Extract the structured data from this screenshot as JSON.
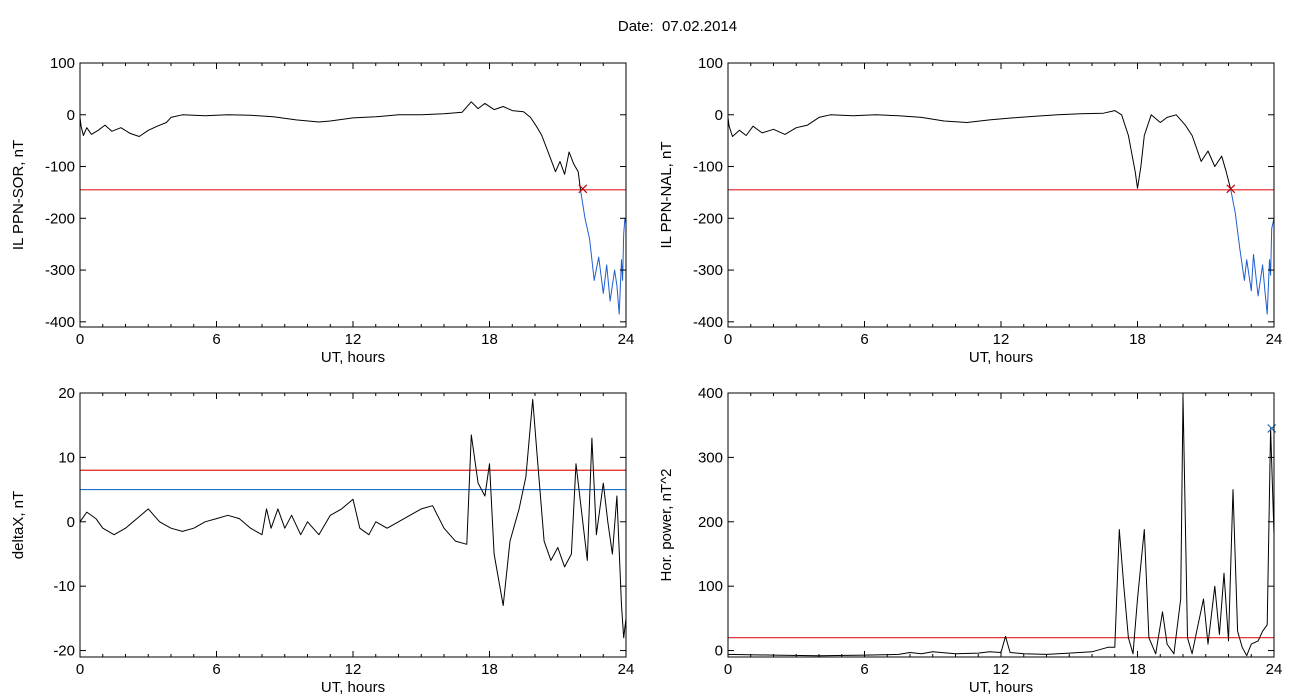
{
  "figure": {
    "title": "Date:  07.02.2014"
  },
  "chart_data": [
    {
      "type": "line",
      "panel": "top-left",
      "xlabel": "UT, hours",
      "ylabel": "IL PPN-SOR, nT",
      "xlim": [
        0,
        24
      ],
      "ylim": [
        -410,
        100
      ],
      "xticks": [
        0,
        6,
        12,
        18,
        24
      ],
      "yticks": [
        100,
        0,
        -100,
        -200,
        -300,
        -400
      ],
      "threshold_lines": [
        {
          "y": -145,
          "color": "#e02020"
        }
      ],
      "markers": [
        {
          "x": 22.1,
          "y": -143,
          "symbol": "x",
          "color": "#c00000"
        }
      ],
      "series": [
        {
          "color": "#000000",
          "points": [
            [
              0,
              -5
            ],
            [
              0.05,
              -22
            ],
            [
              0.15,
              -40
            ],
            [
              0.3,
              -25
            ],
            [
              0.5,
              -38
            ],
            [
              0.8,
              -30
            ],
            [
              1.1,
              -20
            ],
            [
              1.4,
              -32
            ],
            [
              1.8,
              -25
            ],
            [
              2.2,
              -36
            ],
            [
              2.6,
              -42
            ],
            [
              3.0,
              -30
            ],
            [
              3.4,
              -22
            ],
            [
              3.8,
              -15
            ],
            [
              4.0,
              -5
            ],
            [
              4.5,
              0
            ],
            [
              5.5,
              -2
            ],
            [
              6.5,
              0
            ],
            [
              7.5,
              -1
            ],
            [
              8.5,
              -4
            ],
            [
              9.5,
              -10
            ],
            [
              10.5,
              -14
            ],
            [
              11.0,
              -12
            ],
            [
              12.0,
              -6
            ],
            [
              13.0,
              -4
            ],
            [
              14.0,
              0
            ],
            [
              15.0,
              0
            ],
            [
              16.0,
              2
            ],
            [
              16.8,
              5
            ],
            [
              17.2,
              25
            ],
            [
              17.5,
              12
            ],
            [
              17.8,
              22
            ],
            [
              18.2,
              10
            ],
            [
              18.6,
              16
            ],
            [
              19.0,
              8
            ],
            [
              19.5,
              6
            ],
            [
              19.8,
              -5
            ],
            [
              20.1,
              -25
            ],
            [
              20.3,
              -40
            ],
            [
              20.6,
              -75
            ],
            [
              20.9,
              -110
            ],
            [
              21.1,
              -90
            ],
            [
              21.3,
              -115
            ],
            [
              21.5,
              -72
            ],
            [
              21.7,
              -95
            ],
            [
              21.9,
              -110
            ],
            [
              22.0,
              -145
            ]
          ]
        },
        {
          "color": "#1f5fcf",
          "points": [
            [
              22.0,
              -145
            ],
            [
              22.2,
              -200
            ],
            [
              22.4,
              -240
            ],
            [
              22.6,
              -320
            ],
            [
              22.8,
              -275
            ],
            [
              22.9,
              -310
            ],
            [
              23.0,
              -345
            ],
            [
              23.15,
              -290
            ],
            [
              23.3,
              -360
            ],
            [
              23.5,
              -300
            ],
            [
              23.6,
              -330
            ],
            [
              23.7,
              -385
            ],
            [
              23.8,
              -280
            ],
            [
              23.85,
              -320
            ],
            [
              23.9,
              -230
            ],
            [
              23.95,
              -200
            ],
            [
              24,
              -210
            ]
          ]
        }
      ]
    },
    {
      "type": "line",
      "panel": "top-right",
      "xlabel": "UT, hours",
      "ylabel": "IL PPN-NAL, nT",
      "xlim": [
        0,
        24
      ],
      "ylim": [
        -410,
        100
      ],
      "xticks": [
        0,
        6,
        12,
        18,
        24
      ],
      "yticks": [
        100,
        0,
        -100,
        -200,
        -300,
        -400
      ],
      "threshold_lines": [
        {
          "y": -145,
          "color": "#e02020"
        }
      ],
      "markers": [
        {
          "x": 22.1,
          "y": -143,
          "symbol": "x",
          "color": "#c00000"
        }
      ],
      "series": [
        {
          "color": "#000000",
          "points": [
            [
              0,
              -5
            ],
            [
              0.05,
              -22
            ],
            [
              0.2,
              -42
            ],
            [
              0.5,
              -30
            ],
            [
              0.8,
              -40
            ],
            [
              1.1,
              -22
            ],
            [
              1.5,
              -35
            ],
            [
              2.0,
              -28
            ],
            [
              2.5,
              -38
            ],
            [
              3.0,
              -25
            ],
            [
              3.5,
              -20
            ],
            [
              4.0,
              -5
            ],
            [
              4.5,
              0
            ],
            [
              5.5,
              -2
            ],
            [
              6.5,
              0
            ],
            [
              7.5,
              -2
            ],
            [
              8.5,
              -5
            ],
            [
              9.5,
              -12
            ],
            [
              10.5,
              -15
            ],
            [
              11.5,
              -10
            ],
            [
              12.5,
              -6
            ],
            [
              13.5,
              -3
            ],
            [
              14.5,
              0
            ],
            [
              15.5,
              2
            ],
            [
              16.5,
              3
            ],
            [
              17.0,
              8
            ],
            [
              17.3,
              0
            ],
            [
              17.6,
              -40
            ],
            [
              17.9,
              -110
            ],
            [
              18.0,
              -142
            ],
            [
              18.15,
              -100
            ],
            [
              18.3,
              -40
            ],
            [
              18.6,
              0
            ],
            [
              19.0,
              -15
            ],
            [
              19.3,
              -5
            ],
            [
              19.7,
              0
            ],
            [
              20.1,
              -20
            ],
            [
              20.4,
              -40
            ],
            [
              20.8,
              -90
            ],
            [
              21.1,
              -70
            ],
            [
              21.4,
              -100
            ],
            [
              21.7,
              -80
            ],
            [
              21.9,
              -110
            ],
            [
              22.1,
              -145
            ]
          ]
        },
        {
          "color": "#1f5fcf",
          "points": [
            [
              22.1,
              -145
            ],
            [
              22.3,
              -190
            ],
            [
              22.5,
              -260
            ],
            [
              22.7,
              -320
            ],
            [
              22.8,
              -280
            ],
            [
              23.0,
              -340
            ],
            [
              23.1,
              -270
            ],
            [
              23.3,
              -350
            ],
            [
              23.5,
              -290
            ],
            [
              23.6,
              -340
            ],
            [
              23.7,
              -385
            ],
            [
              23.8,
              -280
            ],
            [
              23.85,
              -310
            ],
            [
              23.9,
              -220
            ],
            [
              24,
              -200
            ]
          ]
        }
      ]
    },
    {
      "type": "line",
      "panel": "bottom-left",
      "xlabel": "UT, hours",
      "ylabel": "deltaX, nT",
      "xlim": [
        0,
        24
      ],
      "ylim": [
        -21,
        20
      ],
      "xticks": [
        0,
        6,
        12,
        18,
        24
      ],
      "yticks": [
        20,
        10,
        0,
        -10,
        -20
      ],
      "threshold_lines": [
        {
          "y": 8,
          "color": "#e02020"
        },
        {
          "y": 5,
          "color": "#1f6fd0"
        }
      ],
      "series": [
        {
          "color": "#000000",
          "points": [
            [
              0,
              0
            ],
            [
              0.3,
              1.5
            ],
            [
              0.7,
              0.5
            ],
            [
              1.0,
              -1
            ],
            [
              1.5,
              -2
            ],
            [
              2.0,
              -1
            ],
            [
              2.5,
              0.5
            ],
            [
              3.0,
              2
            ],
            [
              3.5,
              0
            ],
            [
              4.0,
              -1
            ],
            [
              4.5,
              -1.5
            ],
            [
              5.0,
              -1
            ],
            [
              5.5,
              0
            ],
            [
              6.0,
              0.5
            ],
            [
              6.5,
              1
            ],
            [
              7.0,
              0.5
            ],
            [
              7.5,
              -1
            ],
            [
              8.0,
              -2
            ],
            [
              8.2,
              2
            ],
            [
              8.4,
              -1
            ],
            [
              8.7,
              2
            ],
            [
              9.0,
              -1
            ],
            [
              9.3,
              1
            ],
            [
              9.7,
              -2
            ],
            [
              10.0,
              0
            ],
            [
              10.5,
              -2
            ],
            [
              11.0,
              1
            ],
            [
              11.5,
              2
            ],
            [
              12.0,
              3.5
            ],
            [
              12.3,
              -1
            ],
            [
              12.7,
              -2
            ],
            [
              13.0,
              0
            ],
            [
              13.5,
              -1
            ],
            [
              14.0,
              0
            ],
            [
              14.5,
              1
            ],
            [
              15.0,
              2
            ],
            [
              15.5,
              2.5
            ],
            [
              16.0,
              -1
            ],
            [
              16.5,
              -3
            ],
            [
              17.0,
              -3.5
            ],
            [
              17.2,
              13.5
            ],
            [
              17.5,
              6
            ],
            [
              17.8,
              4
            ],
            [
              18.0,
              9
            ],
            [
              18.2,
              -5
            ],
            [
              18.6,
              -13
            ],
            [
              18.9,
              -3
            ],
            [
              19.3,
              2
            ],
            [
              19.6,
              7
            ],
            [
              19.9,
              19
            ],
            [
              20.1,
              10
            ],
            [
              20.4,
              -3
            ],
            [
              20.7,
              -6
            ],
            [
              21.0,
              -4
            ],
            [
              21.3,
              -7
            ],
            [
              21.6,
              -5
            ],
            [
              21.8,
              9
            ],
            [
              22.0,
              3
            ],
            [
              22.3,
              -6
            ],
            [
              22.5,
              13
            ],
            [
              22.7,
              -2
            ],
            [
              23.0,
              6
            ],
            [
              23.2,
              0
            ],
            [
              23.4,
              -5
            ],
            [
              23.6,
              4
            ],
            [
              23.8,
              -13
            ],
            [
              23.9,
              -18
            ],
            [
              24,
              -15
            ]
          ]
        }
      ]
    },
    {
      "type": "line",
      "panel": "bottom-right",
      "xlabel": "UT, hours",
      "ylabel": "Hor. power, nT^2",
      "xlim": [
        0,
        24
      ],
      "ylim": [
        -10,
        400
      ],
      "xticks": [
        0,
        6,
        12,
        18,
        24
      ],
      "yticks": [
        400,
        300,
        200,
        100,
        0
      ],
      "threshold_lines": [
        {
          "y": 20,
          "color": "#e02020"
        }
      ],
      "markers": [
        {
          "x": 23.9,
          "y": 345,
          "symbol": "x",
          "color": "#2f6fb0"
        }
      ],
      "series": [
        {
          "color": "#000000",
          "points": [
            [
              0,
              -6
            ],
            [
              2,
              -7
            ],
            [
              4,
              -8
            ],
            [
              6,
              -7
            ],
            [
              7.5,
              -6
            ],
            [
              8.0,
              -3
            ],
            [
              8.5,
              -5
            ],
            [
              9.0,
              -2
            ],
            [
              10.0,
              -5
            ],
            [
              11.0,
              -4
            ],
            [
              11.5,
              -2
            ],
            [
              12.0,
              -3
            ],
            [
              12.2,
              22
            ],
            [
              12.4,
              -3
            ],
            [
              13,
              -5
            ],
            [
              14,
              -6
            ],
            [
              15,
              -4
            ],
            [
              16,
              -2
            ],
            [
              16.7,
              5
            ],
            [
              17.0,
              5
            ],
            [
              17.2,
              188
            ],
            [
              17.4,
              100
            ],
            [
              17.6,
              20
            ],
            [
              17.8,
              -5
            ],
            [
              18.0,
              80
            ],
            [
              18.3,
              188
            ],
            [
              18.5,
              20
            ],
            [
              18.8,
              -5
            ],
            [
              19.1,
              60
            ],
            [
              19.3,
              10
            ],
            [
              19.6,
              -5
            ],
            [
              19.9,
              80
            ],
            [
              20.0,
              395
            ],
            [
              20.2,
              20
            ],
            [
              20.4,
              -5
            ],
            [
              20.6,
              30
            ],
            [
              20.9,
              80
            ],
            [
              21.1,
              10
            ],
            [
              21.4,
              100
            ],
            [
              21.6,
              25
            ],
            [
              21.8,
              120
            ],
            [
              22.0,
              15
            ],
            [
              22.2,
              250
            ],
            [
              22.4,
              30
            ],
            [
              22.6,
              5
            ],
            [
              22.8,
              -8
            ],
            [
              23.0,
              10
            ],
            [
              23.3,
              15
            ],
            [
              23.5,
              30
            ],
            [
              23.7,
              40
            ],
            [
              23.85,
              345
            ],
            [
              24,
              180
            ]
          ]
        }
      ]
    }
  ]
}
